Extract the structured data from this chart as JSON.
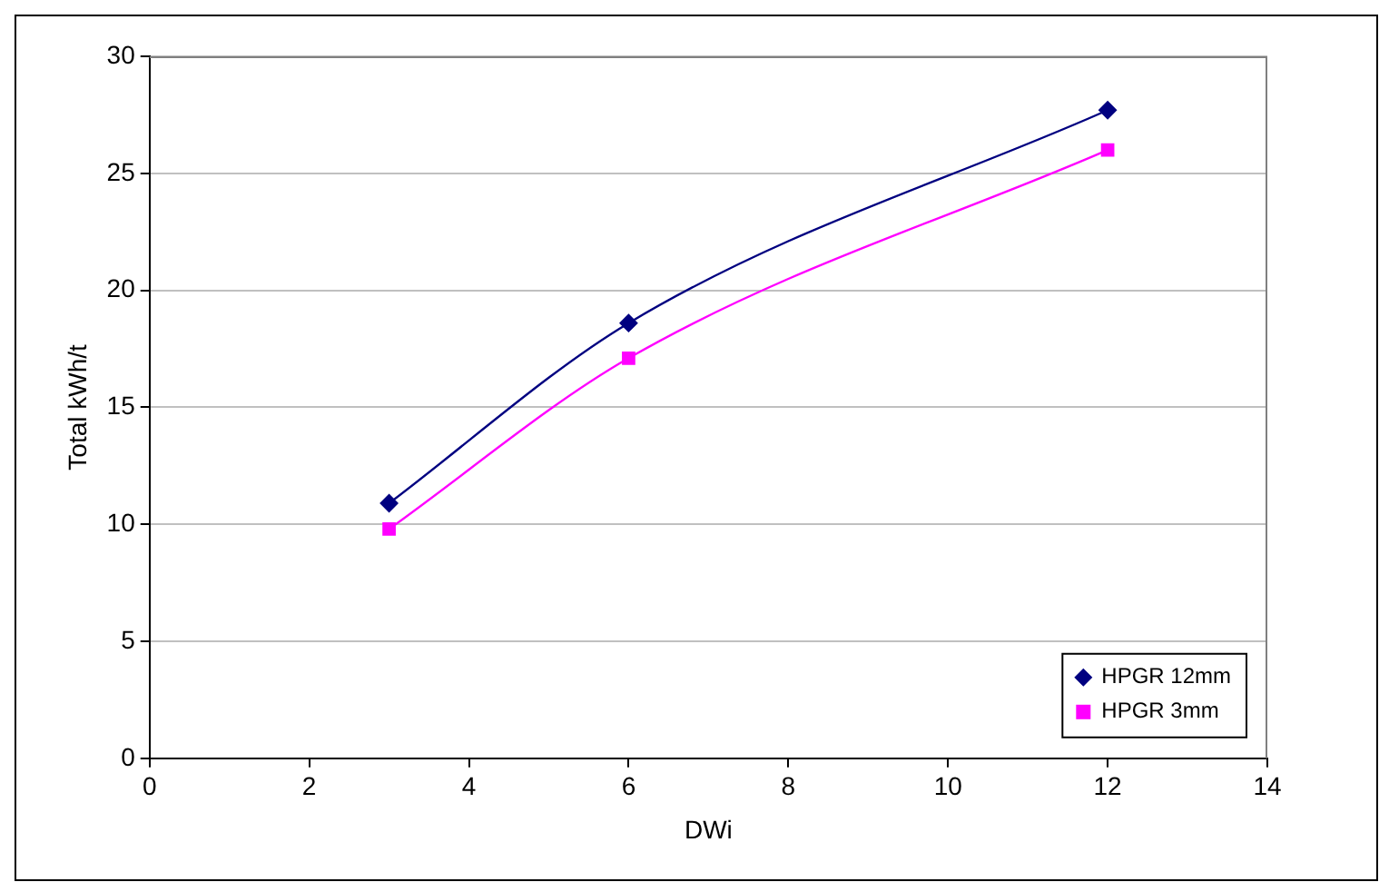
{
  "chart_data": {
    "type": "line",
    "xlabel": "DWi",
    "ylabel": "Total kWh/t",
    "xlim": [
      0,
      14
    ],
    "xticks": [
      0,
      2,
      4,
      6,
      8,
      10,
      12,
      14
    ],
    "ylim": [
      0,
      30
    ],
    "yticks": [
      0,
      5,
      10,
      15,
      20,
      25,
      30
    ],
    "grid": "y",
    "legend": "bottom right",
    "series": [
      {
        "name": "HPGR 12mm",
        "color": "#000080",
        "x": [
          3,
          6,
          12
        ],
        "values": [
          10.9,
          18.6,
          27.7
        ],
        "marker": "diamond"
      },
      {
        "name": "HPGR 3mm",
        "color": "#ff00ff",
        "x": [
          3,
          6,
          12
        ],
        "values": [
          9.8,
          17.1,
          26.0
        ],
        "marker": "square"
      }
    ]
  }
}
